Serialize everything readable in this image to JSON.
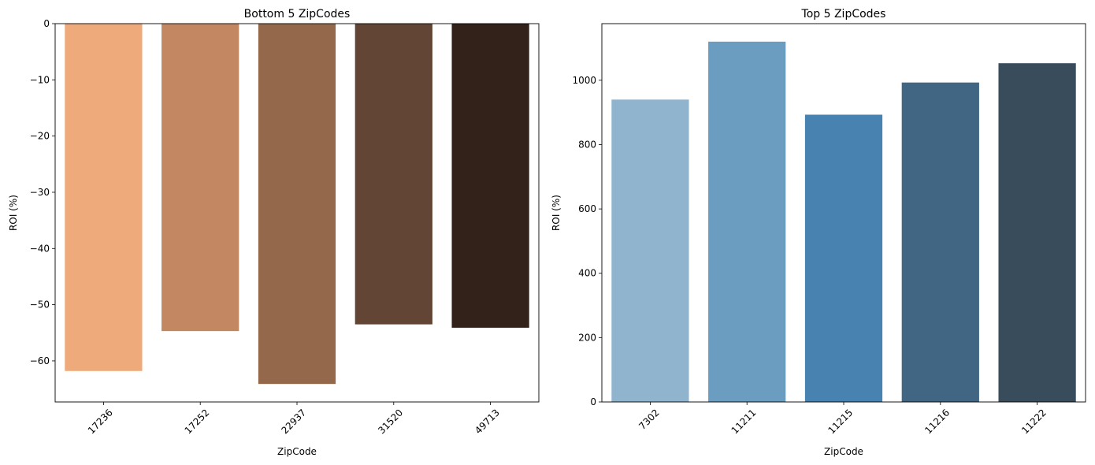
{
  "chart_data": [
    {
      "type": "bar",
      "title": "Bottom 5 ZipCodes",
      "xlabel": "ZipCode",
      "ylabel": "ROI (%)",
      "categories": [
        "17236",
        "17252",
        "22937",
        "31520",
        "49713"
      ],
      "values": [
        -61.8,
        -54.7,
        -64.1,
        -53.5,
        -54.1
      ],
      "ylim": [
        -67.3,
        0
      ],
      "yticks": [
        0,
        -10,
        -20,
        -30,
        -40,
        -50,
        -60
      ],
      "ytick_labels": [
        "0",
        "−10",
        "−20",
        "−30",
        "−40",
        "−50",
        "−60"
      ],
      "colors": [
        "#EEAA7B",
        "#C38862",
        "#93684B",
        "#624534",
        "#32221A"
      ],
      "grid": false,
      "xtick_rotation": 45
    },
    {
      "type": "bar",
      "title": "Top 5 ZipCodes",
      "xlabel": "ZipCode",
      "ylabel": "ROI (%)",
      "categories": [
        "7302",
        "11211",
        "11215",
        "11216",
        "11222"
      ],
      "values": [
        940,
        1120,
        893,
        993,
        1053
      ],
      "ylim": [
        0,
        1176
      ],
      "yticks": [
        0,
        200,
        400,
        600,
        800,
        1000
      ],
      "ytick_labels": [
        "0",
        "200",
        "400",
        "600",
        "800",
        "1000"
      ],
      "colors": [
        "#91B4CE",
        "#6A9DBF",
        "#4882B0",
        "#406683",
        "#394C5C"
      ],
      "grid": false,
      "xtick_rotation": 45
    }
  ]
}
